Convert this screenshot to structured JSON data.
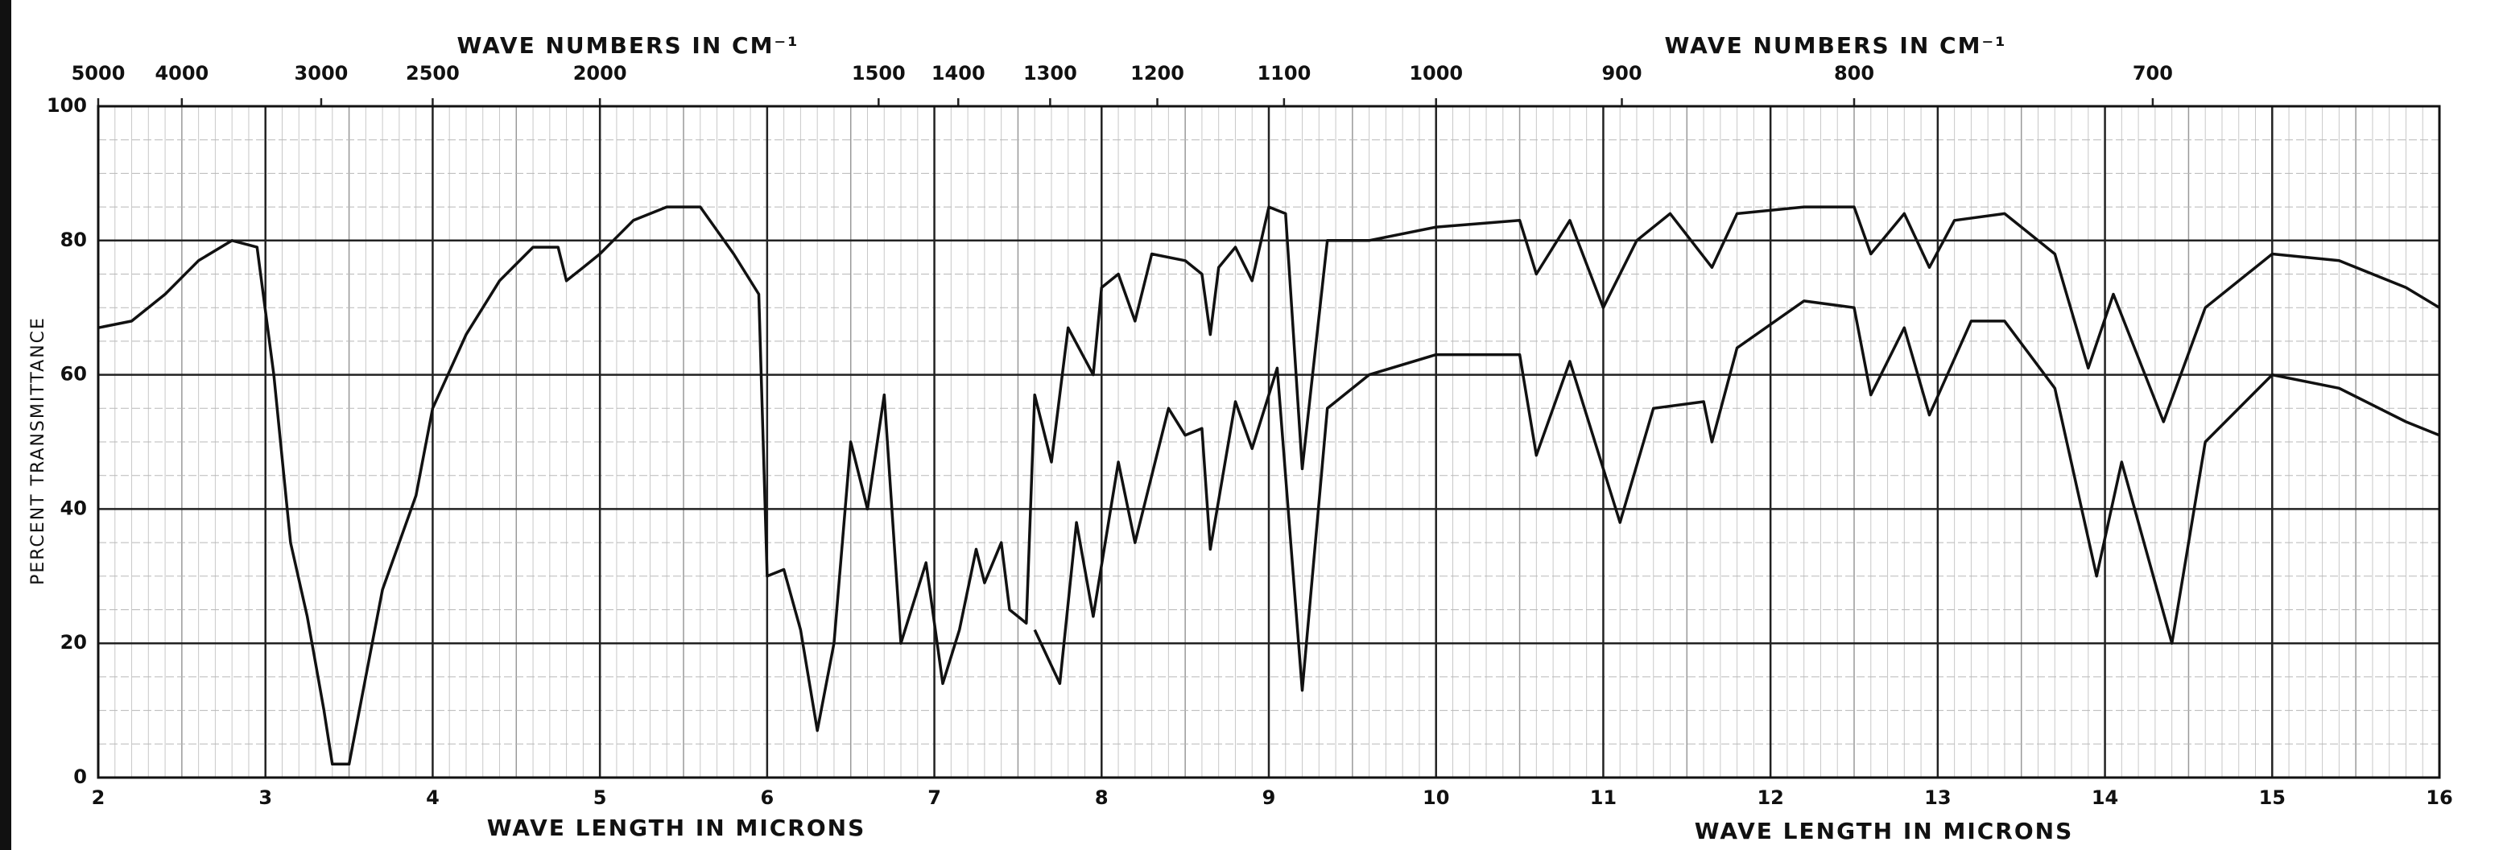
{
  "chart_data": {
    "type": "line",
    "xlabels": [
      "WAVE LENGTH IN MICRONS",
      "WAVE LENGTH IN MICRONS"
    ],
    "x2labels": [
      "WAVE NUMBERS IN CM⁻¹",
      "WAVE NUMBERS IN CM⁻¹"
    ],
    "ylabel": "PERCENT TRANSMITTANCE",
    "xlim": [
      2,
      16
    ],
    "xticks": [
      2,
      3,
      4,
      5,
      6,
      7,
      8,
      9,
      10,
      11,
      12,
      13,
      14,
      15,
      16
    ],
    "x2scale": "reciprocal",
    "x2factor": 10000,
    "x2ticks": [
      5000,
      4000,
      3000,
      2500,
      2000,
      1500,
      1400,
      1300,
      1200,
      1100,
      1000,
      900,
      800,
      700
    ],
    "ylim": [
      0,
      100
    ],
    "yticks": [
      0,
      20,
      40,
      60,
      80,
      100
    ],
    "grid": true,
    "series": [
      {
        "color": "#111111",
        "x": [
          2.0,
          2.2,
          2.4,
          2.6,
          2.8,
          2.95,
          3.05,
          3.15,
          3.25,
          3.35,
          3.4,
          3.5,
          3.6,
          3.7,
          3.8,
          3.9,
          4.0,
          4.2,
          4.4,
          4.6,
          4.75,
          4.8,
          4.9,
          5.0,
          5.2,
          5.4,
          5.6,
          5.8,
          5.95,
          6.0,
          6.1,
          6.2,
          6.3,
          6.4,
          6.5,
          6.6,
          6.7,
          6.8,
          6.95,
          7.05,
          7.15,
          7.25,
          7.3,
          7.4,
          7.45,
          7.55,
          7.6,
          7.7,
          7.8,
          7.95,
          8.0,
          8.1,
          8.2,
          8.3,
          8.5,
          8.6,
          8.65,
          8.7,
          8.8,
          8.9,
          9.0,
          9.1,
          9.2,
          9.35,
          9.6,
          10.0,
          10.5,
          10.6,
          10.8,
          11.0,
          11.2,
          11.4,
          11.65,
          11.8,
          12.2,
          12.5,
          12.6,
          12.8,
          12.95,
          13.1,
          13.4,
          13.7,
          13.9,
          14.05,
          14.35,
          14.6,
          15.0,
          15.4,
          15.8,
          16.0
        ],
        "values": [
          67,
          68,
          72,
          77,
          80,
          79,
          60,
          35,
          24,
          10,
          2,
          2,
          15,
          28,
          35,
          42,
          55,
          66,
          74,
          79,
          79,
          74,
          76,
          78,
          83,
          85,
          85,
          78,
          72,
          30,
          31,
          22,
          7,
          20,
          50,
          40,
          57,
          20,
          32,
          14,
          22,
          34,
          29,
          35,
          25,
          23,
          57,
          47,
          67,
          60,
          73,
          75,
          68,
          78,
          77,
          75,
          66,
          76,
          79,
          74,
          85,
          84,
          46,
          80,
          80,
          82,
          83,
          75,
          83,
          70,
          80,
          84,
          76,
          84,
          85,
          85,
          78,
          84,
          76,
          83,
          84,
          78,
          61,
          72,
          53,
          70,
          78,
          77,
          73,
          70
        ]
      },
      {
        "color": "#111111",
        "x": [
          7.6,
          7.75,
          7.85,
          7.95,
          8.1,
          8.2,
          8.4,
          8.5,
          8.6,
          8.65,
          8.8,
          8.9,
          9.05,
          9.2,
          9.35,
          9.6,
          10.0,
          10.5,
          10.6,
          10.8,
          11.1,
          11.3,
          11.6,
          11.65,
          11.8,
          12.2,
          12.5,
          12.6,
          12.8,
          12.95,
          13.2,
          13.4,
          13.7,
          13.95,
          14.1,
          14.4,
          14.6,
          15.0,
          15.4,
          15.8,
          16.0
        ],
        "values": [
          22,
          14,
          38,
          24,
          47,
          35,
          55,
          51,
          52,
          34,
          56,
          49,
          61,
          13,
          55,
          60,
          63,
          63,
          48,
          62,
          38,
          55,
          56,
          50,
          64,
          71,
          70,
          57,
          67,
          54,
          68,
          68,
          58,
          30,
          47,
          20,
          50,
          60,
          58,
          53,
          51
        ]
      }
    ]
  }
}
